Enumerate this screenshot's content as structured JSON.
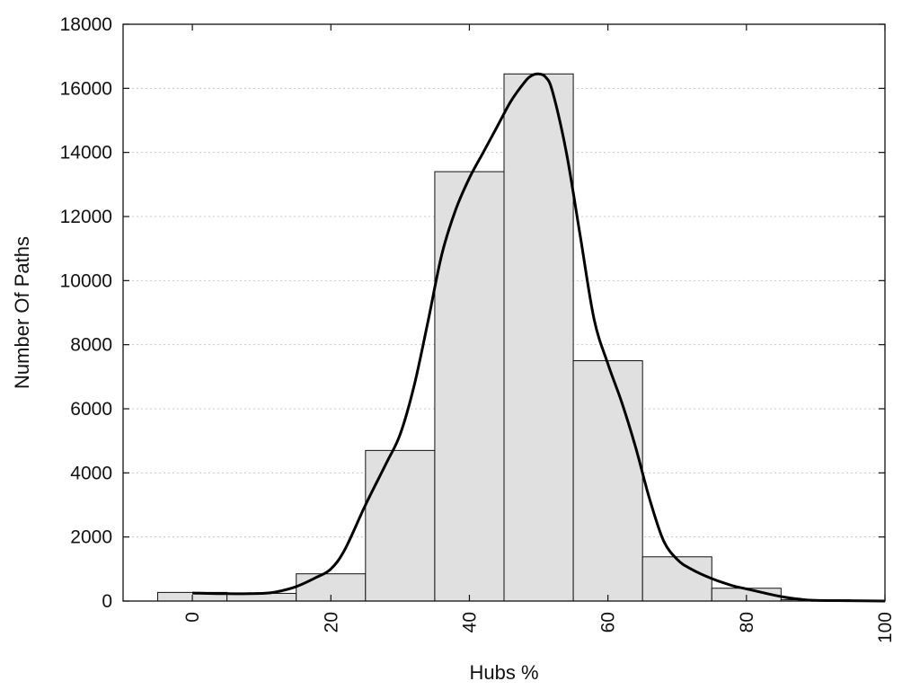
{
  "chart_data": {
    "type": "bar",
    "title": "",
    "xlabel": "Hubs %",
    "ylabel": "Number Of Paths",
    "xlim": [
      -10,
      100
    ],
    "ylim": [
      0,
      18000
    ],
    "x_ticks": [
      0,
      20,
      40,
      60,
      80,
      100
    ],
    "y_ticks": [
      0,
      2000,
      4000,
      6000,
      8000,
      10000,
      12000,
      14000,
      16000,
      18000
    ],
    "grid": "horizontal dotted",
    "legend": "none",
    "bins": [
      {
        "center": 0,
        "value": 270
      },
      {
        "center": 10,
        "value": 240
      },
      {
        "center": 20,
        "value": 850
      },
      {
        "center": 30,
        "value": 4700
      },
      {
        "center": 40,
        "value": 13400
      },
      {
        "center": 50,
        "value": 16450
      },
      {
        "center": 60,
        "value": 7500
      },
      {
        "center": 70,
        "value": 1380
      },
      {
        "center": 80,
        "value": 400
      },
      {
        "center": 90,
        "value": 40
      }
    ],
    "bin_width": 10,
    "curve": {
      "x": [
        0,
        5,
        10,
        12,
        15,
        18,
        20,
        22,
        25,
        28,
        30,
        32,
        34,
        36,
        38,
        40,
        42,
        44,
        46,
        48,
        49,
        50,
        51,
        52,
        54,
        56,
        58,
        60,
        62,
        64,
        66,
        68,
        70,
        72,
        75,
        78,
        80,
        85,
        88,
        90,
        95,
        100
      ],
      "y": [
        250,
        230,
        240,
        280,
        450,
        750,
        1000,
        1600,
        3000,
        4300,
        5200,
        6700,
        8700,
        10800,
        12200,
        13200,
        14000,
        14800,
        15600,
        16200,
        16400,
        16450,
        16350,
        15900,
        14000,
        11400,
        8800,
        7400,
        6200,
        4800,
        3200,
        1900,
        1300,
        1000,
        700,
        480,
        380,
        140,
        50,
        20,
        10,
        0
      ]
    },
    "colors": {
      "bar_fill": "#e0e0e0",
      "bar_stroke": "#111111",
      "curve": "#000000",
      "grid": "#c8c8c8"
    }
  }
}
